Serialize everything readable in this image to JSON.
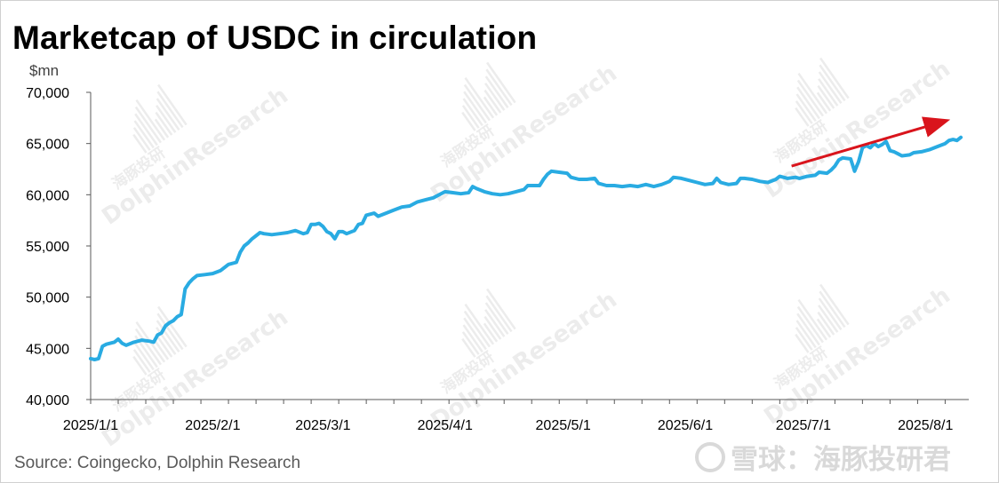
{
  "header": {
    "title": "Marketcap of USDC in circulation",
    "unit": "$mn"
  },
  "footer": {
    "source": "Source: Coingecko, Dolphin Research",
    "brand": "雪球：海豚投研君"
  },
  "watermark": {
    "cn": "海豚投研",
    "en": "DolphinResearch"
  },
  "colors": {
    "series": "#29abe2",
    "trend_arrow": "#d9141c",
    "axis": "#595959"
  },
  "chart_data": {
    "type": "line",
    "title": "Marketcap of USDC in circulation",
    "ylabel": "$mn",
    "xlabel": "",
    "ylim": [
      40000,
      70000
    ],
    "yticks": [
      40000,
      45000,
      50000,
      55000,
      60000,
      65000,
      70000
    ],
    "ytick_labels": [
      "40,000",
      "45,000",
      "50,000",
      "55,000",
      "60,000",
      "65,000",
      "70,000"
    ],
    "xlim": [
      "2025-01-01",
      "2025-08-12"
    ],
    "xticks": [
      "2025-01-01",
      "2025-02-01",
      "2025-03-01",
      "2025-04-01",
      "2025-05-01",
      "2025-06-01",
      "2025-07-01",
      "2025-08-01"
    ],
    "xtick_labels": [
      "2025/1/1",
      "2025/2/1",
      "2025/3/1",
      "2025/4/1",
      "2025/5/1",
      "2025/6/1",
      "2025/7/1",
      "2025/8/1"
    ],
    "grid": false,
    "annotations": [
      {
        "type": "arrow",
        "from": [
          "2025-06-28",
          62800
        ],
        "to": [
          "2025-08-06",
          67200
        ]
      }
    ],
    "series": [
      {
        "points": [
          [
            "2025-01-01",
            44000
          ],
          [
            "2025-01-02",
            43900
          ],
          [
            "2025-01-03",
            44000
          ],
          [
            "2025-01-04",
            45200
          ],
          [
            "2025-01-05",
            45400
          ],
          [
            "2025-01-07",
            45600
          ],
          [
            "2025-01-08",
            45900
          ],
          [
            "2025-01-09",
            45500
          ],
          [
            "2025-01-10",
            45300
          ],
          [
            "2025-01-12",
            45600
          ],
          [
            "2025-01-14",
            45800
          ],
          [
            "2025-01-16",
            45700
          ],
          [
            "2025-01-17",
            45600
          ],
          [
            "2025-01-18",
            46300
          ],
          [
            "2025-01-19",
            46500
          ],
          [
            "2025-01-20",
            47200
          ],
          [
            "2025-01-21",
            47500
          ],
          [
            "2025-01-22",
            47700
          ],
          [
            "2025-01-23",
            48100
          ],
          [
            "2025-01-24",
            48300
          ],
          [
            "2025-01-25",
            50800
          ],
          [
            "2025-01-26",
            51400
          ],
          [
            "2025-01-27",
            51800
          ],
          [
            "2025-01-28",
            52100
          ],
          [
            "2025-01-30",
            52200
          ],
          [
            "2025-02-01",
            52300
          ],
          [
            "2025-02-03",
            52600
          ],
          [
            "2025-02-05",
            53200
          ],
          [
            "2025-02-07",
            53400
          ],
          [
            "2025-02-08",
            54400
          ],
          [
            "2025-02-09",
            55000
          ],
          [
            "2025-02-10",
            55300
          ],
          [
            "2025-02-11",
            55700
          ],
          [
            "2025-02-12",
            56000
          ],
          [
            "2025-02-13",
            56300
          ],
          [
            "2025-02-14",
            56200
          ],
          [
            "2025-02-16",
            56100
          ],
          [
            "2025-02-18",
            56200
          ],
          [
            "2025-02-20",
            56300
          ],
          [
            "2025-02-22",
            56500
          ],
          [
            "2025-02-24",
            56200
          ],
          [
            "2025-02-25",
            56300
          ],
          [
            "2025-02-26",
            57100
          ],
          [
            "2025-02-27",
            57100
          ],
          [
            "2025-02-28",
            57200
          ],
          [
            "2025-03-01",
            56900
          ],
          [
            "2025-03-02",
            56400
          ],
          [
            "2025-03-03",
            56200
          ],
          [
            "2025-03-04",
            55700
          ],
          [
            "2025-03-05",
            56400
          ],
          [
            "2025-03-06",
            56400
          ],
          [
            "2025-03-07",
            56200
          ],
          [
            "2025-03-09",
            56500
          ],
          [
            "2025-03-10",
            57100
          ],
          [
            "2025-03-11",
            57200
          ],
          [
            "2025-03-12",
            58000
          ],
          [
            "2025-03-14",
            58200
          ],
          [
            "2025-03-15",
            57900
          ],
          [
            "2025-03-17",
            58200
          ],
          [
            "2025-03-19",
            58500
          ],
          [
            "2025-03-21",
            58800
          ],
          [
            "2025-03-23",
            58900
          ],
          [
            "2025-03-25",
            59300
          ],
          [
            "2025-03-27",
            59500
          ],
          [
            "2025-03-29",
            59700
          ],
          [
            "2025-04-01",
            60300
          ],
          [
            "2025-04-03",
            60200
          ],
          [
            "2025-04-05",
            60100
          ],
          [
            "2025-04-07",
            60200
          ],
          [
            "2025-04-08",
            60800
          ],
          [
            "2025-04-09",
            60600
          ],
          [
            "2025-04-11",
            60300
          ],
          [
            "2025-04-13",
            60100
          ],
          [
            "2025-04-15",
            60000
          ],
          [
            "2025-04-17",
            60100
          ],
          [
            "2025-04-19",
            60300
          ],
          [
            "2025-04-21",
            60500
          ],
          [
            "2025-04-22",
            60900
          ],
          [
            "2025-04-25",
            60900
          ],
          [
            "2025-04-26",
            61500
          ],
          [
            "2025-04-27",
            62000
          ],
          [
            "2025-04-28",
            62300
          ],
          [
            "2025-04-30",
            62200
          ],
          [
            "2025-05-02",
            62100
          ],
          [
            "2025-05-03",
            61700
          ],
          [
            "2025-05-05",
            61500
          ],
          [
            "2025-05-07",
            61500
          ],
          [
            "2025-05-09",
            61600
          ],
          [
            "2025-05-10",
            61100
          ],
          [
            "2025-05-12",
            60900
          ],
          [
            "2025-05-14",
            60900
          ],
          [
            "2025-05-16",
            60800
          ],
          [
            "2025-05-18",
            60900
          ],
          [
            "2025-05-20",
            60800
          ],
          [
            "2025-05-22",
            61000
          ],
          [
            "2025-05-24",
            60800
          ],
          [
            "2025-05-26",
            61000
          ],
          [
            "2025-05-28",
            61300
          ],
          [
            "2025-05-29",
            61700
          ],
          [
            "2025-05-31",
            61600
          ],
          [
            "2025-06-02",
            61400
          ],
          [
            "2025-06-04",
            61200
          ],
          [
            "2025-06-06",
            61000
          ],
          [
            "2025-06-08",
            61100
          ],
          [
            "2025-06-09",
            61600
          ],
          [
            "2025-06-10",
            61200
          ],
          [
            "2025-06-12",
            61000
          ],
          [
            "2025-06-14",
            61100
          ],
          [
            "2025-06-15",
            61600
          ],
          [
            "2025-06-16",
            61600
          ],
          [
            "2025-06-18",
            61500
          ],
          [
            "2025-06-20",
            61300
          ],
          [
            "2025-06-22",
            61200
          ],
          [
            "2025-06-24",
            61500
          ],
          [
            "2025-06-25",
            61800
          ],
          [
            "2025-06-27",
            61600
          ],
          [
            "2025-06-29",
            61700
          ],
          [
            "2025-06-30",
            61600
          ],
          [
            "2025-07-02",
            61800
          ],
          [
            "2025-07-04",
            61900
          ],
          [
            "2025-07-05",
            62200
          ],
          [
            "2025-07-07",
            62100
          ],
          [
            "2025-07-08",
            62400
          ],
          [
            "2025-07-09",
            62800
          ],
          [
            "2025-07-10",
            63400
          ],
          [
            "2025-07-11",
            63600
          ],
          [
            "2025-07-13",
            63500
          ],
          [
            "2025-07-14",
            62300
          ],
          [
            "2025-07-15",
            63200
          ],
          [
            "2025-07-16",
            64600
          ],
          [
            "2025-07-17",
            64800
          ],
          [
            "2025-07-18",
            64600
          ],
          [
            "2025-07-19",
            65000
          ],
          [
            "2025-07-20",
            64700
          ],
          [
            "2025-07-21",
            64900
          ],
          [
            "2025-07-22",
            65200
          ],
          [
            "2025-07-23",
            64300
          ],
          [
            "2025-07-24",
            64200
          ],
          [
            "2025-07-25",
            64000
          ],
          [
            "2025-07-26",
            63800
          ],
          [
            "2025-07-28",
            63900
          ],
          [
            "2025-07-29",
            64100
          ],
          [
            "2025-07-31",
            64200
          ],
          [
            "2025-08-02",
            64400
          ],
          [
            "2025-08-04",
            64700
          ],
          [
            "2025-08-06",
            65000
          ],
          [
            "2025-08-07",
            65300
          ],
          [
            "2025-08-08",
            65400
          ],
          [
            "2025-08-09",
            65300
          ],
          [
            "2025-08-10",
            65600
          ]
        ]
      }
    ]
  }
}
